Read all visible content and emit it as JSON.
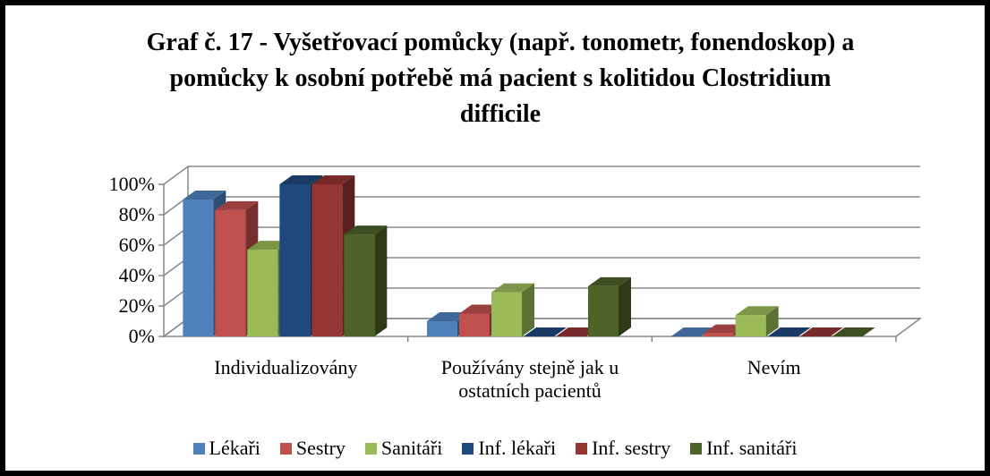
{
  "chart_data": {
    "type": "bar3d",
    "title": "Graf č. 17 - Vyšetřovací pomůcky (např. tonometr, fonendoskop) a pomůcky k osobní potřebě má pacient s kolitidou Clostridium difficile",
    "categories": [
      "Individualizovány",
      "Používány stejně jak u ostatních pacientů",
      "Nevím"
    ],
    "series": [
      {
        "name": "Lékaři",
        "color": "#4f81bd",
        "values": [
          90,
          10,
          0
        ]
      },
      {
        "name": "Sestry",
        "color": "#c0504d",
        "values": [
          83,
          15,
          2
        ]
      },
      {
        "name": "Sanitáři",
        "color": "#9bbb59",
        "values": [
          57,
          29,
          14
        ]
      },
      {
        "name": "Inf. lékaři",
        "color": "#1f497d",
        "values": [
          100,
          0,
          0
        ]
      },
      {
        "name": "Inf. sestry",
        "color": "#943634",
        "values": [
          100,
          0,
          0
        ]
      },
      {
        "name": "Inf. sanitáři",
        "color": "#4f6228",
        "values": [
          67,
          33,
          0
        ]
      }
    ],
    "ylim": [
      0,
      100
    ],
    "yticks": [
      {
        "value": 0,
        "label": "0%"
      },
      {
        "value": 20,
        "label": "20%"
      },
      {
        "value": 40,
        "label": "40%"
      },
      {
        "value": 60,
        "label": "60%"
      },
      {
        "value": 80,
        "label": "80%"
      },
      {
        "value": 100,
        "label": "100%"
      }
    ],
    "grid": true,
    "legend": "bottom"
  }
}
